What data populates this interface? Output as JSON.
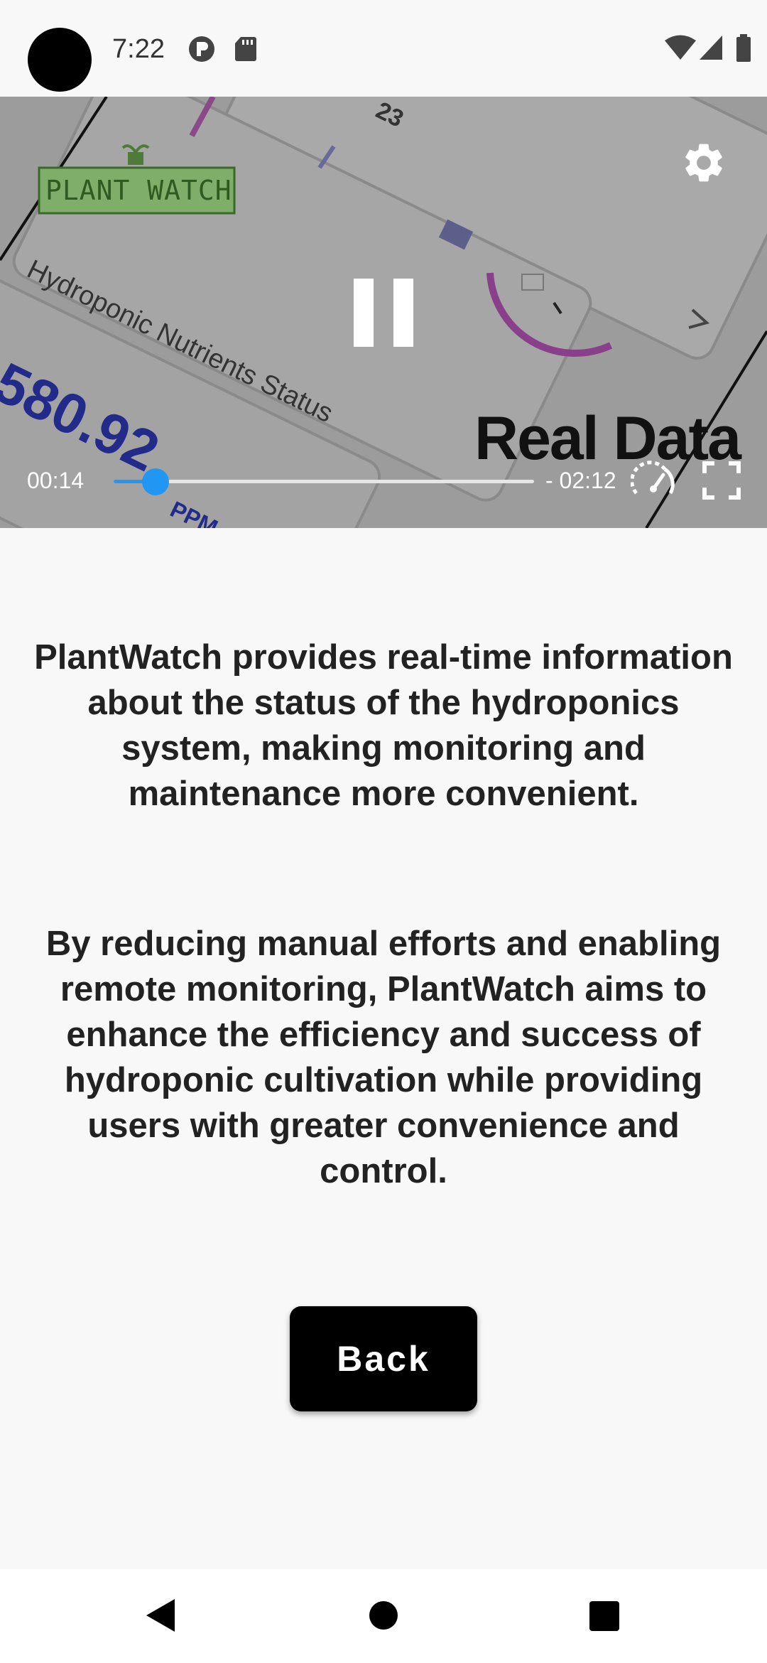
{
  "status_bar": {
    "time": "7:22",
    "left_icons": [
      "notification-p-icon",
      "sd-card-icon"
    ],
    "right_icons": [
      "wifi-icon",
      "cell-signal-icon",
      "battery-icon"
    ]
  },
  "video": {
    "frame_text": {
      "brand": "PLANT WATCH",
      "heading": "Hydroponic Nutrients Status",
      "value": "580.92",
      "unit": "PPM",
      "corner_number": "23",
      "overlay_title": "Real Data"
    },
    "current_time": "00:14",
    "remaining_time": "- 02:12",
    "progress": 0.1,
    "accent_color": "#2196f3",
    "controls": [
      "gear-icon",
      "pause-icon",
      "speed-icon",
      "fullscreen-icon"
    ]
  },
  "content": {
    "paragraph_1": "PlantWatch provides real-time information about the status of the hydroponics system, making monitoring and maintenance more convenient.",
    "paragraph_2": "By reducing manual efforts and enabling remote monitoring, PlantWatch aims to enhance the efficiency and success of hydroponic cultivation while providing users with greater convenience and control."
  },
  "back_button": {
    "label": "Back"
  },
  "nav_bar": {
    "buttons": [
      "back-triangle-icon",
      "home-circle-icon",
      "recents-square-icon"
    ]
  }
}
